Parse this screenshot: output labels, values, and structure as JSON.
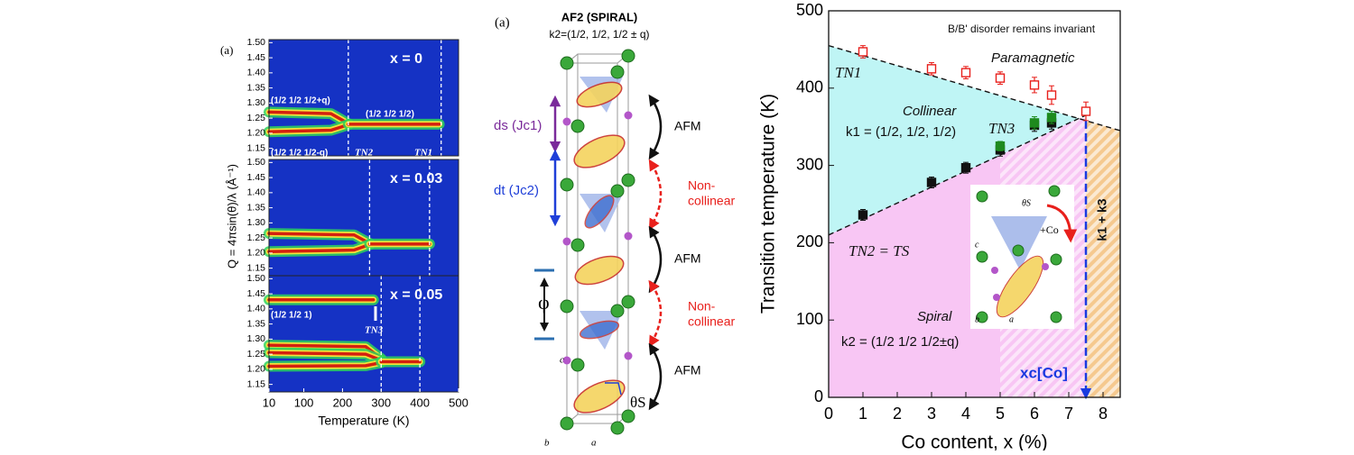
{
  "chart_data": [
    {
      "type": "heatmap-stack",
      "label": "(a)",
      "x_label": "Temperature (K)",
      "y_label": "Q = 4πsin(θ)/λ (Å⁻¹)",
      "xlim": [
        10,
        500
      ],
      "xticks": [
        10,
        100,
        200,
        300,
        400,
        500
      ],
      "ylim": [
        1.125,
        1.51
      ],
      "yticks": [
        1.15,
        {
          "value": 1.2,
          "label": "1.20"
        },
        1.25,
        {
          "value": 1.3,
          "label": "1.30"
        },
        1.35,
        {
          "value": 1.4,
          "label": "1.40"
        },
        1.45,
        {
          "value": 1.5,
          "label": "1.50"
        }
      ],
      "panels": [
        {
          "label": "x = 0",
          "dashed": [
            215,
            455
          ],
          "bands": [
            {
              "t": [
                10,
                170,
                215
              ],
              "q": [
                1.27,
                1.265,
                1.232
              ]
            },
            {
              "t": [
                10,
                170,
                215
              ],
              "q": [
                1.205,
                1.21,
                1.228
              ]
            },
            {
              "t": [
                215,
                450
              ],
              "q": [
                1.23,
                1.23
              ]
            }
          ],
          "annotations": [
            "(1/2 1/2 1/2+q)",
            "(1/2 1/2 1/2-q)",
            "(1/2 1/2 1/2)",
            "TN2",
            "TN1"
          ]
        },
        {
          "label": "x = 0.03",
          "dashed": [
            270,
            425
          ],
          "bands": [
            {
              "t": [
                10,
                230,
                270
              ],
              "q": [
                1.265,
                1.26,
                1.232
              ]
            },
            {
              "t": [
                10,
                230,
                270
              ],
              "q": [
                1.205,
                1.21,
                1.228
              ]
            },
            {
              "t": [
                270,
                425
              ],
              "q": [
                1.23,
                1.23
              ]
            }
          ],
          "annotations": []
        },
        {
          "label": "x = 0.05",
          "dashed": [
            300,
            400
          ],
          "bands": [
            {
              "t": [
                10,
                280
              ],
              "q": [
                1.43,
                1.43
              ]
            },
            {
              "t": [
                10,
                260,
                300
              ],
              "q": [
                1.28,
                1.275,
                1.235
              ]
            },
            {
              "t": [
                10,
                260,
                300
              ],
              "q": [
                1.255,
                1.25,
                1.23
              ]
            },
            {
              "t": [
                10,
                260,
                300
              ],
              "q": [
                1.21,
                1.212,
                1.222
              ]
            },
            {
              "t": [
                300,
                400
              ],
              "q": [
                1.225,
                1.225
              ]
            }
          ],
          "annotations": [
            "(1/2 1/2 1)",
            "TN3"
          ]
        }
      ]
    },
    {
      "type": "scatter",
      "x_label": "Co content, x (%)",
      "y_label": "Transition temperature (K)",
      "xlim": [
        0,
        8.5
      ],
      "xticks": [
        0,
        1,
        2,
        3,
        4,
        5,
        6,
        7,
        8
      ],
      "ylim": [
        0,
        500
      ],
      "yticks": [
        0,
        100,
        200,
        300,
        400,
        500
      ],
      "series": [
        {
          "color": "#e8201c",
          "marker": "open",
          "x": [
            1,
            3,
            4,
            5,
            6,
            6.5,
            7.5
          ],
          "values": [
            447,
            425,
            420,
            413,
            404,
            391,
            370
          ],
          "errors": [
            8,
            8,
            8,
            8,
            10,
            12,
            12
          ]
        },
        {
          "color": "#111111",
          "marker": "filled",
          "x": [
            1,
            3,
            4,
            5,
            6,
            6.5
          ],
          "values": [
            236,
            278,
            297,
            320,
            352,
            355
          ],
          "errors": [
            7,
            7,
            7,
            8,
            8,
            8
          ]
        },
        {
          "color": "#1e8a1e",
          "marker": "filled",
          "x": [
            5,
            6,
            6.5
          ],
          "values": [
            325,
            355,
            362
          ],
          "errors": [
            6,
            8,
            8
          ]
        }
      ],
      "boundaries": [
        {
          "x": [
            0,
            8.5
          ],
          "y": [
            455,
            345
          ]
        },
        {
          "x": [
            0,
            7.5
          ],
          "y": [
            210,
            365
          ]
        }
      ],
      "xc": 7.5,
      "hatched_region": [
        5,
        7.5
      ],
      "region_colors": {
        "collinear": "#bff5f5",
        "spiral": "#f8c6f4",
        "mixed": "#f5c98f"
      },
      "annotations": [
        "B/B' disorder remains invariant",
        "Paramagnetic",
        "TN1",
        "Collinear",
        "k1 = (1/2, 1/2, 1/2)",
        "TN3",
        "TN2 = TS",
        "Spiral",
        "k2 = (1/2 1/2 1/2±q)",
        "xc[Co]",
        "k1 + k3"
      ],
      "inset": [
        "θS",
        "+Co",
        "c",
        "b",
        "a"
      ]
    }
  ],
  "diagram": {
    "label": "(a)",
    "title": "AF2 (SPIRAL)",
    "subtitle": "k2=(1/2, 1/2, 1/2 ± q)",
    "ds": "ds (Jc1)",
    "dt": "dt (Jc2)",
    "phi": "φ",
    "couplings": [
      [
        "AFM"
      ],
      [
        "Non-",
        "collinear"
      ],
      [
        "AFM"
      ],
      [
        "Non-",
        "collinear"
      ],
      [
        "AFM"
      ]
    ],
    "angle": "θS",
    "axes": [
      "c",
      "b",
      "a"
    ]
  }
}
